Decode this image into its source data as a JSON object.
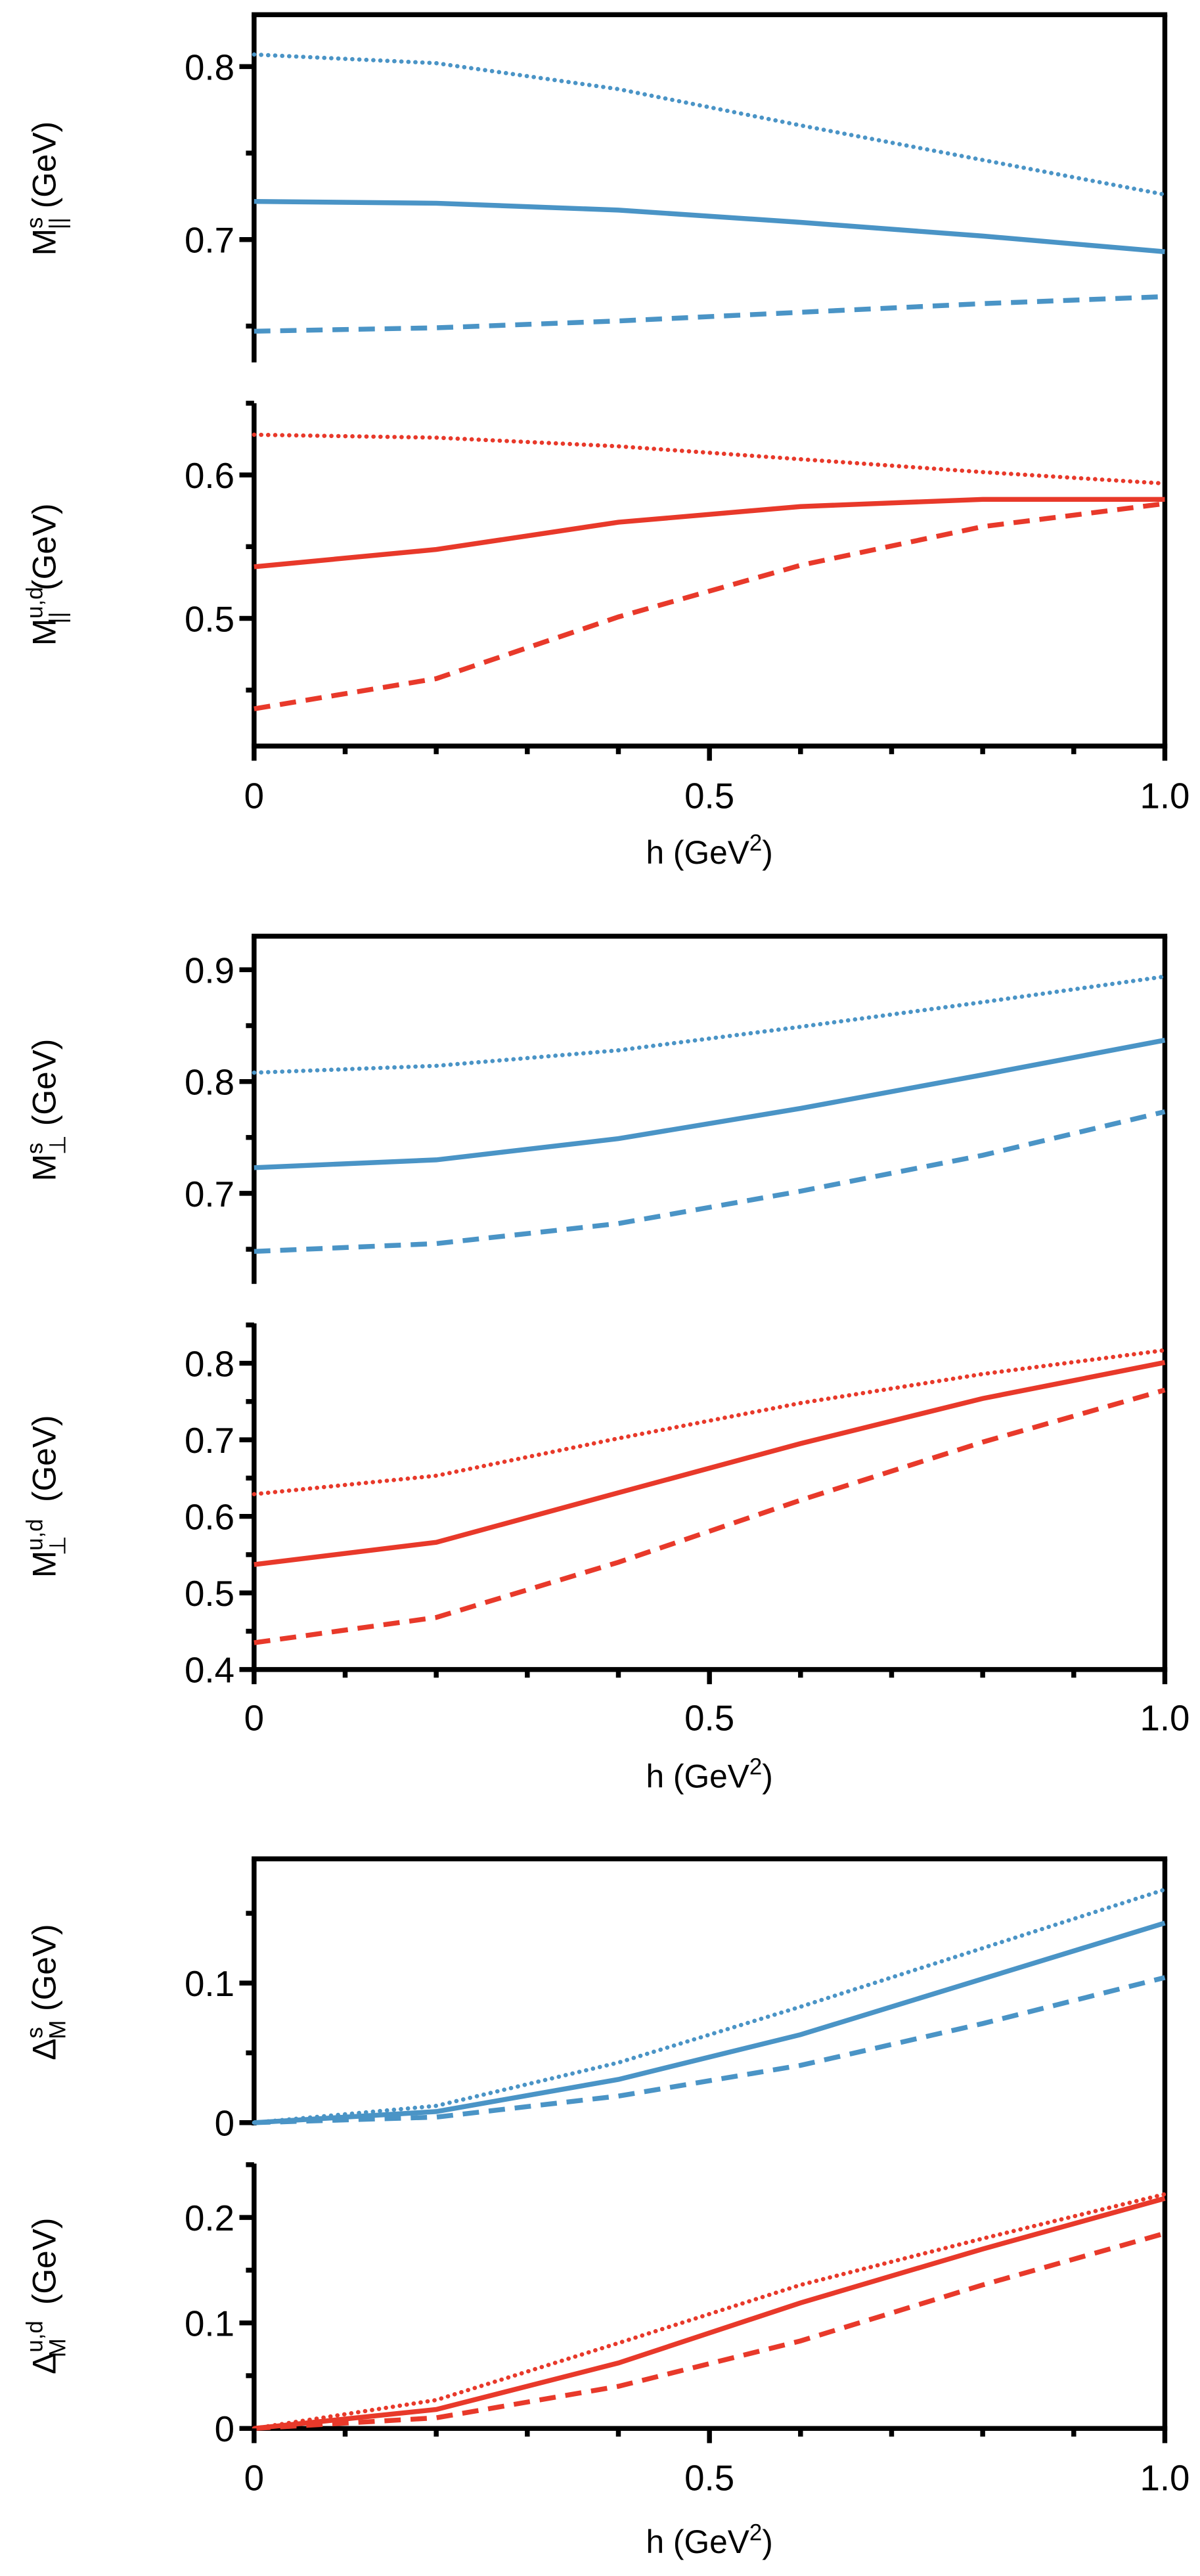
{
  "colors": {
    "strange": "#4a94c6",
    "light": "#e8392a",
    "axis": "#000000"
  },
  "line_styles": [
    "solid",
    "dashed",
    "dotted"
  ],
  "chart_data": [
    {
      "group": 1,
      "type": "line",
      "xlabel": {
        "main": "h (GeV",
        "sup": "2",
        "end": ")"
      },
      "xlim": [
        0,
        1.0
      ],
      "xticks": [
        {
          "v": 0,
          "label": "0"
        },
        {
          "v": 0.5,
          "label": "0.5"
        },
        {
          "v": 1.0,
          "label": "1.0"
        }
      ],
      "xminor": [
        0.1,
        0.2,
        0.3,
        0.4,
        0.6,
        0.7,
        0.8,
        0.9
      ],
      "x": [
        0,
        0.2,
        0.4,
        0.6,
        0.8,
        1.0
      ],
      "panels": [
        {
          "ylabel": {
            "main": "M",
            "sup": "s",
            "sub": "||",
            "unit": " (GeV)"
          },
          "ylim": [
            0.629,
            0.83
          ],
          "yticks": [
            {
              "v": 0.7,
              "label": "0.7"
            },
            {
              "v": 0.8,
              "label": "0.8"
            }
          ],
          "yminor": [
            0.65,
            0.75
          ],
          "color": "strange",
          "series": [
            {
              "style": "solid",
              "values": [
                0.722,
                0.721,
                0.717,
                0.71,
                0.702,
                0.693
              ]
            },
            {
              "style": "dashed",
              "values": [
                0.647,
                0.649,
                0.653,
                0.658,
                0.663,
                0.667
              ]
            },
            {
              "style": "dotted",
              "values": [
                0.807,
                0.802,
                0.787,
                0.766,
                0.746,
                0.726
              ]
            }
          ]
        },
        {
          "ylabel": {
            "main": "M",
            "sup": "u,d",
            "sub": "||",
            "unit": " (GeV)"
          },
          "ylim": [
            0.411,
            0.65
          ],
          "yticks": [
            {
              "v": 0.5,
              "label": "0.5"
            },
            {
              "v": 0.6,
              "label": "0.6"
            }
          ],
          "yminor": [
            0.45,
            0.55,
            0.65
          ],
          "color": "light",
          "series": [
            {
              "style": "solid",
              "values": [
                0.536,
                0.548,
                0.567,
                0.578,
                0.583,
                0.583
              ]
            },
            {
              "style": "dashed",
              "values": [
                0.437,
                0.458,
                0.501,
                0.537,
                0.564,
                0.58
              ]
            },
            {
              "style": "dotted",
              "values": [
                0.628,
                0.626,
                0.62,
                0.611,
                0.602,
                0.594
              ]
            }
          ]
        }
      ]
    },
    {
      "group": 2,
      "type": "line",
      "xlabel": {
        "main": "h (GeV",
        "sup": "2",
        "end": ")"
      },
      "xlim": [
        0,
        1.0
      ],
      "xticks": [
        {
          "v": 0,
          "label": "0"
        },
        {
          "v": 0.5,
          "label": "0.5"
        },
        {
          "v": 1.0,
          "label": "1.0"
        }
      ],
      "xminor": [
        0.1,
        0.2,
        0.3,
        0.4,
        0.6,
        0.7,
        0.8,
        0.9
      ],
      "x": [
        0,
        0.2,
        0.4,
        0.6,
        0.8,
        1.0
      ],
      "panels": [
        {
          "ylabel": {
            "main": "M",
            "sup": "s",
            "sub": "⊥",
            "unit": " (GeV)"
          },
          "ylim": [
            0.619,
            0.93
          ],
          "yticks": [
            {
              "v": 0.7,
              "label": "0.7"
            },
            {
              "v": 0.8,
              "label": "0.8"
            },
            {
              "v": 0.9,
              "label": "0.9"
            }
          ],
          "yminor": [
            0.65,
            0.75,
            0.85
          ],
          "color": "strange",
          "series": [
            {
              "style": "solid",
              "values": [
                0.723,
                0.73,
                0.749,
                0.776,
                0.806,
                0.837
              ]
            },
            {
              "style": "dashed",
              "values": [
                0.648,
                0.655,
                0.673,
                0.702,
                0.734,
                0.773
              ]
            },
            {
              "style": "dotted",
              "values": [
                0.808,
                0.814,
                0.828,
                0.849,
                0.871,
                0.894
              ]
            }
          ]
        },
        {
          "ylabel": {
            "main": "M",
            "sup": "u,d",
            "sub": "⊥",
            "unit": " (GeV)"
          },
          "ylim": [
            0.4,
            0.852
          ],
          "yticks": [
            {
              "v": 0.4,
              "label": "0.4"
            },
            {
              "v": 0.5,
              "label": "0.5"
            },
            {
              "v": 0.6,
              "label": "0.6"
            },
            {
              "v": 0.7,
              "label": "0.7"
            },
            {
              "v": 0.8,
              "label": "0.8"
            }
          ],
          "yminor": [
            0.45,
            0.55,
            0.65,
            0.75,
            0.85
          ],
          "color": "light",
          "series": [
            {
              "style": "solid",
              "values": [
                0.537,
                0.566,
                0.631,
                0.695,
                0.754,
                0.801
              ]
            },
            {
              "style": "dashed",
              "values": [
                0.435,
                0.468,
                0.54,
                0.621,
                0.697,
                0.765
              ]
            },
            {
              "style": "dotted",
              "values": [
                0.629,
                0.653,
                0.702,
                0.748,
                0.786,
                0.817
              ]
            }
          ]
        }
      ]
    },
    {
      "group": 3,
      "type": "line",
      "xlabel": {
        "main": "h (GeV",
        "sup": "2",
        "end": ")"
      },
      "xlim": [
        0,
        1.0
      ],
      "xticks": [
        {
          "v": 0,
          "label": "0"
        },
        {
          "v": 0.5,
          "label": "0.5"
        },
        {
          "v": 1.0,
          "label": "1.0"
        }
      ],
      "xminor": [
        0.1,
        0.2,
        0.3,
        0.4,
        0.6,
        0.7,
        0.8,
        0.9
      ],
      "x": [
        0,
        0.2,
        0.4,
        0.6,
        0.8,
        1.0
      ],
      "panels": [
        {
          "ylabel": {
            "main": "Δ",
            "sup": "s",
            "sub": "M",
            "unit": " (GeV)"
          },
          "ylim": [
            -0.002,
            0.189
          ],
          "yticks": [
            {
              "v": 0,
              "label": "0"
            },
            {
              "v": 0.1,
              "label": "0.1"
            }
          ],
          "yminor": [
            0.05,
            0.15
          ],
          "color": "strange",
          "series": [
            {
              "style": "solid",
              "values": [
                0,
                0.008,
                0.031,
                0.063,
                0.103,
                0.143
              ]
            },
            {
              "style": "dashed",
              "values": [
                0,
                0.004,
                0.019,
                0.041,
                0.071,
                0.104
              ]
            },
            {
              "style": "dotted",
              "values": [
                0,
                0.012,
                0.043,
                0.083,
                0.125,
                0.167
              ]
            }
          ]
        },
        {
          "ylabel": {
            "main": "Δ",
            "sup": "u,d",
            "sub": "M",
            "unit": " (GeV)"
          },
          "ylim": [
            0,
            0.251
          ],
          "yticks": [
            {
              "v": 0,
              "label": "0"
            },
            {
              "v": 0.1,
              "label": "0.1"
            },
            {
              "v": 0.2,
              "label": "0.2"
            }
          ],
          "yminor": [
            0.05,
            0.15,
            0.25
          ],
          "color": "light",
          "series": [
            {
              "style": "solid",
              "values": [
                0,
                0.018,
                0.062,
                0.119,
                0.17,
                0.218
              ]
            },
            {
              "style": "dashed",
              "values": [
                0,
                0.01,
                0.04,
                0.083,
                0.136,
                0.185
              ]
            },
            {
              "style": "dotted",
              "values": [
                0,
                0.027,
                0.081,
                0.136,
                0.18,
                0.222
              ]
            }
          ]
        }
      ]
    }
  ]
}
